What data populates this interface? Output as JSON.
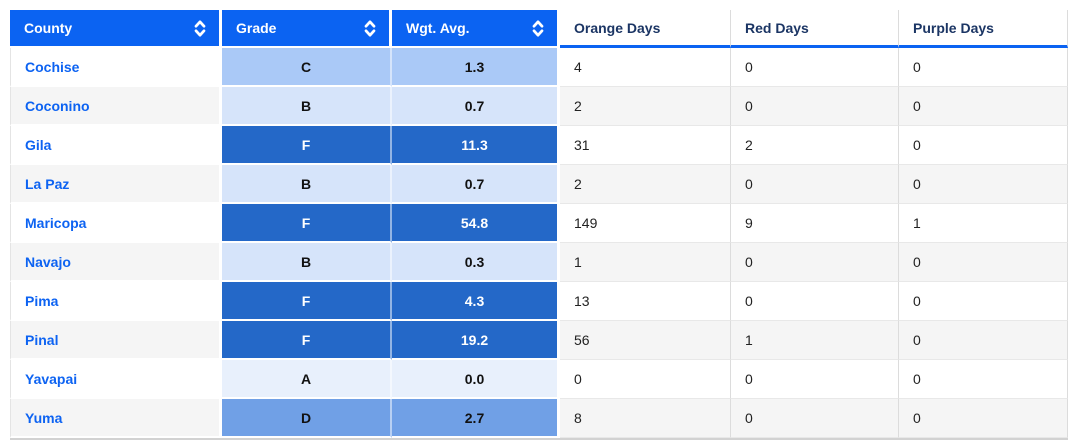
{
  "table": {
    "columns": [
      {
        "label": "County",
        "sortable": true
      },
      {
        "label": "Grade",
        "sortable": true
      },
      {
        "label": "Wgt. Avg.",
        "sortable": true
      },
      {
        "label": "Orange Days",
        "sortable": false
      },
      {
        "label": "Red Days",
        "sortable": false
      },
      {
        "label": "Purple Days",
        "sortable": false
      }
    ],
    "rows": [
      {
        "county": "Cochise",
        "grade": "C",
        "wgt_avg": "1.3",
        "orange_days": "4",
        "red_days": "0",
        "purple_days": "0"
      },
      {
        "county": "Coconino",
        "grade": "B",
        "wgt_avg": "0.7",
        "orange_days": "2",
        "red_days": "0",
        "purple_days": "0"
      },
      {
        "county": "Gila",
        "grade": "F",
        "wgt_avg": "11.3",
        "orange_days": "31",
        "red_days": "2",
        "purple_days": "0"
      },
      {
        "county": "La Paz",
        "grade": "B",
        "wgt_avg": "0.7",
        "orange_days": "2",
        "red_days": "0",
        "purple_days": "0"
      },
      {
        "county": "Maricopa",
        "grade": "F",
        "wgt_avg": "54.8",
        "orange_days": "149",
        "red_days": "9",
        "purple_days": "1"
      },
      {
        "county": "Navajo",
        "grade": "B",
        "wgt_avg": "0.3",
        "orange_days": "1",
        "red_days": "0",
        "purple_days": "0"
      },
      {
        "county": "Pima",
        "grade": "F",
        "wgt_avg": "4.3",
        "orange_days": "13",
        "red_days": "0",
        "purple_days": "0"
      },
      {
        "county": "Pinal",
        "grade": "F",
        "wgt_avg": "19.2",
        "orange_days": "56",
        "red_days": "1",
        "purple_days": "0"
      },
      {
        "county": "Yavapai",
        "grade": "A",
        "wgt_avg": "0.0",
        "orange_days": "0",
        "red_days": "0",
        "purple_days": "0"
      },
      {
        "county": "Yuma",
        "grade": "D",
        "wgt_avg": "2.7",
        "orange_days": "8",
        "red_days": "0",
        "purple_days": "0"
      }
    ]
  },
  "grade_colors": {
    "A": {
      "bg": "#e8f0fc",
      "text": "#111111"
    },
    "B": {
      "bg": "#d6e4fa",
      "text": "#111111"
    },
    "C": {
      "bg": "#aac9f7",
      "text": "#111111"
    },
    "D": {
      "bg": "#70a0e6",
      "text": "#111111"
    },
    "F": {
      "bg": "#2468c8",
      "text": "#ffffff"
    }
  },
  "colors": {
    "header_bg": "#0b63f2",
    "header_text": "#ffffff",
    "plain_header_text": "#1b3564",
    "county_link": "#0d63f2",
    "stripe": "#f5f5f5",
    "border": "#dcdcdc"
  },
  "icons": {
    "sort": "sort-arrows-icon"
  }
}
